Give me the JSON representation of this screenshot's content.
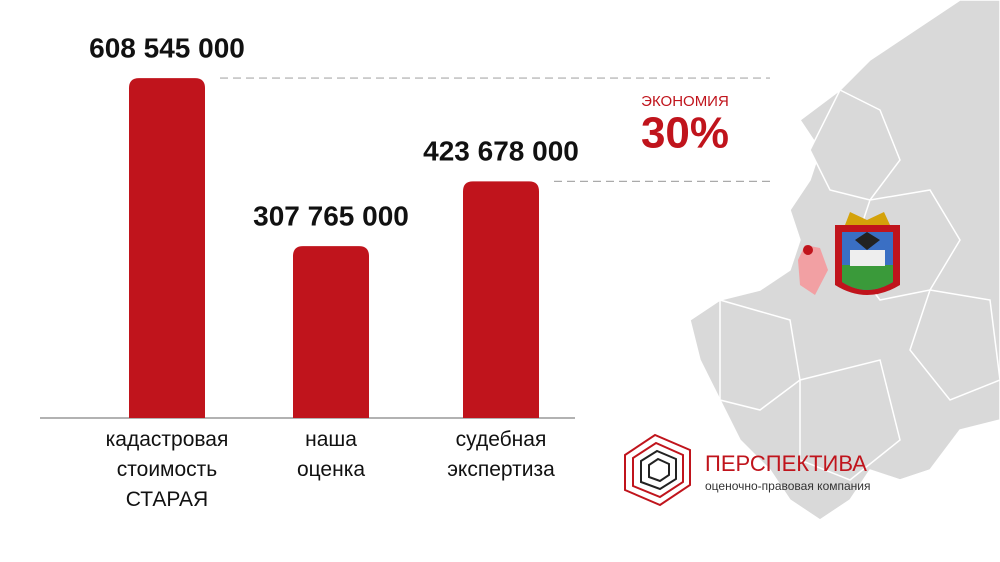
{
  "chart_data": {
    "type": "bar",
    "categories": [
      "кадастровая стоимость СТАРАЯ",
      "наша оценка",
      "судебная экспертиза"
    ],
    "values": [
      608545000,
      307765000,
      423678000
    ],
    "value_labels": [
      "608 545 000",
      "307 765 000",
      "423 678 000"
    ],
    "color": "#c0141c",
    "ylim": [
      0,
      700000000
    ],
    "annotation": {
      "label": "ЭКОНОМИЯ",
      "value": "30%"
    }
  },
  "logo": {
    "name": "ПЕРСПЕКТИВА",
    "tagline": "оценочно-правовая компания"
  }
}
